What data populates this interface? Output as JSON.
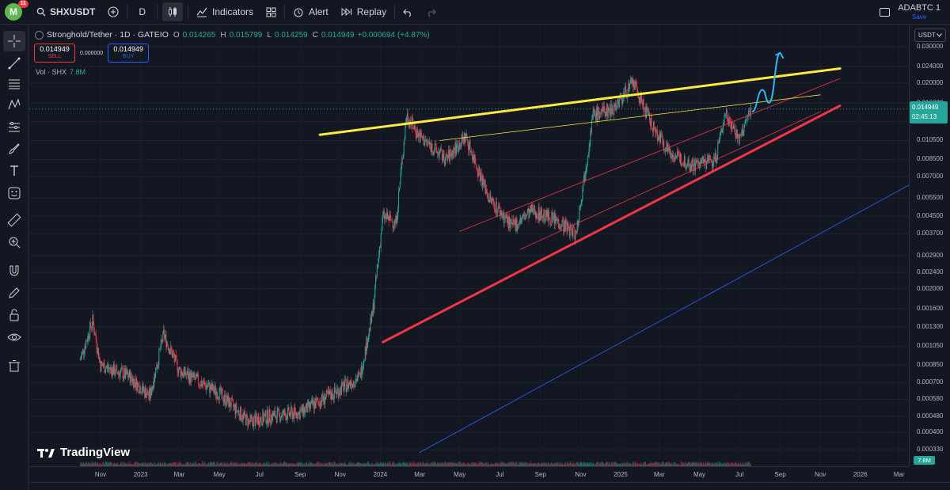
{
  "toolbar": {
    "logo_letter": "M",
    "notifications": "11",
    "symbol": "SHXUSDT",
    "interval": "D",
    "indicators": "Indicators",
    "alert": "Alert",
    "replay": "Replay"
  },
  "layout": {
    "name": "ADABTC 1",
    "save": "Save"
  },
  "legend": {
    "title": "Stronghold/Tether · 1D · GATEIO",
    "open_k": "O",
    "open": "0.014265",
    "high_k": "H",
    "high": "0.015799",
    "low_k": "L",
    "low": "0.014259",
    "close_k": "C",
    "close": "0.014949",
    "change": "+0.000694 (+4.87%)"
  },
  "trade": {
    "sell_price": "0.014949",
    "sell_label": "SELL",
    "spread": "0.000000",
    "buy_price": "0.014949",
    "buy_label": "BUY"
  },
  "volume": {
    "label": "Vol · SHX",
    "value": "7.8M"
  },
  "currency": "USDT",
  "price_tag": {
    "price": "0.014949",
    "countdown": "02:45:13"
  },
  "vol_tag": "7.8M",
  "watermark": "TradingView",
  "colors": {
    "up": "#26a69a",
    "down": "#f23645",
    "yellow": "#ffeb3b",
    "red_line": "#f23645",
    "blue_line": "#2962ff",
    "cyan": "#29b6f6",
    "background": "#131722"
  },
  "chart_data": {
    "type": "candlestick",
    "price_scale": "log",
    "price_ticks": [
      "0.030000",
      "0.024000",
      "0.020000",
      "0.016000",
      "0.013000",
      "0.010500",
      "0.008500",
      "0.007000",
      "0.005500",
      "0.004500",
      "0.003700",
      "0.002900",
      "0.002400",
      "0.002000",
      "0.001600",
      "0.001300",
      "0.001050",
      "0.000850",
      "0.000700",
      "0.000580",
      "0.000480",
      "0.000400",
      "0.000330"
    ],
    "time_ticks": [
      "Nov",
      "2023",
      "Mar",
      "May",
      "Jul",
      "Sep",
      "Nov",
      "2024",
      "Mar",
      "May",
      "Jul",
      "Sep",
      "Nov",
      "2025",
      "Mar",
      "May",
      "Jul",
      "Sep",
      "Nov",
      "2026",
      "Mar"
    ],
    "series": [
      {
        "date": "2022-10-01",
        "close": 0.0009
      },
      {
        "date": "2022-10-20",
        "close": 0.0014
      },
      {
        "date": "2022-11-01",
        "close": 0.00085
      },
      {
        "date": "2022-12-15",
        "close": 0.00075
      },
      {
        "date": "2023-01-15",
        "close": 0.0006
      },
      {
        "date": "2023-02-05",
        "close": 0.0012
      },
      {
        "date": "2023-03-01",
        "close": 0.0008
      },
      {
        "date": "2023-05-01",
        "close": 0.00062
      },
      {
        "date": "2023-06-15",
        "close": 0.00045
      },
      {
        "date": "2023-07-15",
        "close": 0.00048
      },
      {
        "date": "2023-09-01",
        "close": 0.0005
      },
      {
        "date": "2023-11-01",
        "close": 0.00065
      },
      {
        "date": "2023-12-01",
        "close": 0.00075
      },
      {
        "date": "2023-12-20",
        "close": 0.0015
      },
      {
        "date": "2024-01-05",
        "close": 0.0045
      },
      {
        "date": "2024-01-25",
        "close": 0.0042
      },
      {
        "date": "2024-02-10",
        "close": 0.014
      },
      {
        "date": "2024-03-01",
        "close": 0.011
      },
      {
        "date": "2024-04-10",
        "close": 0.0085
      },
      {
        "date": "2024-05-10",
        "close": 0.011
      },
      {
        "date": "2024-06-15",
        "close": 0.0055
      },
      {
        "date": "2024-07-20",
        "close": 0.004
      },
      {
        "date": "2024-08-20",
        "close": 0.0048
      },
      {
        "date": "2024-10-01",
        "close": 0.0042
      },
      {
        "date": "2024-10-25",
        "close": 0.0037
      },
      {
        "date": "2024-11-20",
        "close": 0.014
      },
      {
        "date": "2024-12-20",
        "close": 0.015
      },
      {
        "date": "2025-01-20",
        "close": 0.02
      },
      {
        "date": "2025-02-20",
        "close": 0.012
      },
      {
        "date": "2025-03-20",
        "close": 0.009
      },
      {
        "date": "2025-04-20",
        "close": 0.008
      },
      {
        "date": "2025-05-25",
        "close": 0.0085
      },
      {
        "date": "2025-06-10",
        "close": 0.0145
      },
      {
        "date": "2025-07-01",
        "close": 0.0105
      },
      {
        "date": "2025-07-18",
        "close": 0.014949
      }
    ],
    "trendlines": [
      {
        "name": "resistance",
        "color": "#ffeb3b",
        "from": [
          "2023-10-01",
          0.0112
        ],
        "to": [
          "2025-12-01",
          0.0235
        ]
      },
      {
        "name": "support",
        "color": "#f23645",
        "from": [
          "2024-01-05",
          0.0011
        ],
        "to": [
          "2025-12-01",
          0.0155
        ]
      },
      {
        "name": "upper-channel",
        "color": "#f23645",
        "from": [
          "2024-05-01",
          0.0038
        ],
        "to": [
          "2025-12-01",
          0.021
        ]
      },
      {
        "name": "mid-channel",
        "color": "#f23645",
        "from": [
          "2024-08-01",
          0.0031
        ],
        "to": [
          "2025-11-01",
          0.0145
        ]
      },
      {
        "name": "thin-resistance",
        "color": "#ffeb3b",
        "from": [
          "2024-04-01",
          0.0105
        ],
        "to": [
          "2025-11-01",
          0.0175
        ]
      },
      {
        "name": "long-support",
        "color": "#2962ff",
        "from": [
          "2024-03-01",
          0.00032
        ],
        "to": [
          "2026-04-01",
          0.0068
        ]
      }
    ],
    "projection": {
      "color": "#29b6f6",
      "path": [
        [
          "2025-07-20",
          0.0145
        ],
        [
          "2025-08-05",
          0.0185
        ],
        [
          "2025-08-15",
          0.016
        ],
        [
          "2025-09-01",
          0.028
        ]
      ]
    },
    "last_price": 0.014949
  }
}
